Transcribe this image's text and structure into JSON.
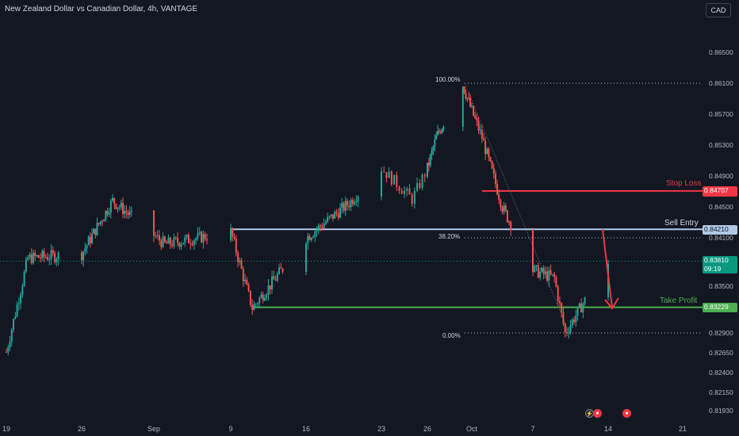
{
  "header": {
    "title": "New Zealand Dollar vs Canadian Dollar, 4h, VANTAGE",
    "currency_button": "CAD"
  },
  "price_axis_labels": [
    "0.86500",
    "0.86100",
    "0.85700",
    "0.85300",
    "0.84900",
    "0.84500",
    "0.84100",
    "0.83500",
    "0.82900",
    "0.82650",
    "0.82400",
    "0.82150",
    "0.81930"
  ],
  "time_axis_labels": [
    "19",
    "26",
    "Sep",
    "9",
    "16",
    "23",
    "26",
    "Oct",
    "7",
    "14",
    "21"
  ],
  "price_tags": {
    "stop_loss": "0.84707",
    "sell_entry": "0.84210",
    "current_price": "0.83810",
    "countdown": "09:19",
    "take_profit": "0.83229"
  },
  "annotations": {
    "stop_loss": "Stop Loss",
    "sell_entry": "Sell Entry",
    "take_profit": "Take Profit",
    "fib_100": "100.00%",
    "fib_382": "38.20%",
    "fib_0": "0.00%"
  },
  "colors": {
    "background": "#131722",
    "up": "#26a69a",
    "down": "#ef5350",
    "stop_loss": "#f23645",
    "sell_entry": "#b2c9e6",
    "take_profit": "#4caf50",
    "current": "#089981"
  },
  "chart_data": {
    "type": "candlestick",
    "title": "New Zealand Dollar vs Canadian Dollar, 4h, VANTAGE",
    "x_ticks": [
      "19",
      "26",
      "Sep",
      "9",
      "16",
      "23",
      "26",
      "Oct",
      "7",
      "14",
      "21"
    ],
    "y_range": [
      0.8193,
      0.8675
    ],
    "key_points": [
      {
        "x": "Aug 19",
        "close": 0.8266
      },
      {
        "x": "Aug 21",
        "close": 0.8385
      },
      {
        "x": "Aug 26",
        "close": 0.839
      },
      {
        "x": "Aug 29",
        "close": 0.8458
      },
      {
        "x": "Sep 3",
        "close": 0.8402
      },
      {
        "x": "Sep 9",
        "close": 0.8418
      },
      {
        "x": "Sep 11",
        "close": 0.8322
      },
      {
        "x": "Sep 16",
        "close": 0.841
      },
      {
        "x": "Sep 20",
        "close": 0.8455
      },
      {
        "x": "Sep 23",
        "close": 0.85
      },
      {
        "x": "Sep 25",
        "close": 0.846
      },
      {
        "x": "Sep 27",
        "close": 0.854
      },
      {
        "x": "Sep 30",
        "close": 0.8608
      },
      {
        "x": "Oct 2",
        "close": 0.854
      },
      {
        "x": "Oct 4",
        "close": 0.845
      },
      {
        "x": "Oct 7",
        "close": 0.837
      },
      {
        "x": "Oct 9",
        "close": 0.836
      },
      {
        "x": "Oct 10",
        "close": 0.829
      },
      {
        "x": "Oct 14",
        "close": 0.8381
      }
    ],
    "levels": {
      "stop_loss": 0.84707,
      "sell_entry": 0.8421,
      "take_profit": 0.83229,
      "current": 0.8381
    },
    "fibonacci": [
      {
        "label": "100.00%",
        "price": 0.861
      },
      {
        "label": "38.20%",
        "price": 0.841
      },
      {
        "label": "0.00%",
        "price": 0.829
      }
    ],
    "grid": false
  }
}
